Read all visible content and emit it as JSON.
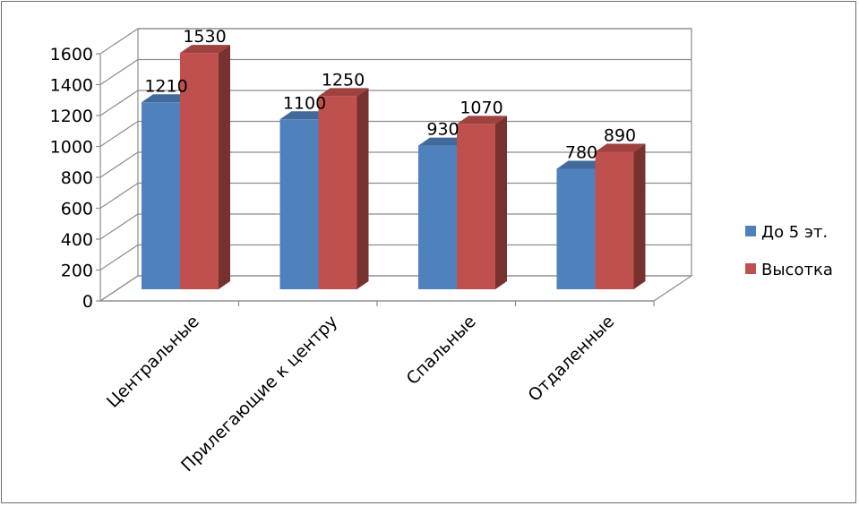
{
  "chart_data": {
    "type": "bar",
    "title": "",
    "xlabel": "",
    "ylabel": "",
    "ylim": [
      0,
      1600
    ],
    "yticks": [
      0,
      200,
      400,
      600,
      800,
      1000,
      1200,
      1400,
      1600
    ],
    "grid": true,
    "legend_position": "right",
    "categories": [
      "Центральные",
      "Прилегающие к центру",
      "Спальные",
      "Отдаленные"
    ],
    "series": [
      {
        "name": "До 5 эт.",
        "values": [
          1210,
          1100,
          930,
          780
        ],
        "color": "#4f81bd"
      },
      {
        "name": "Высотка",
        "values": [
          1530,
          1250,
          1070,
          890
        ],
        "color": "#c0504d"
      }
    ]
  }
}
